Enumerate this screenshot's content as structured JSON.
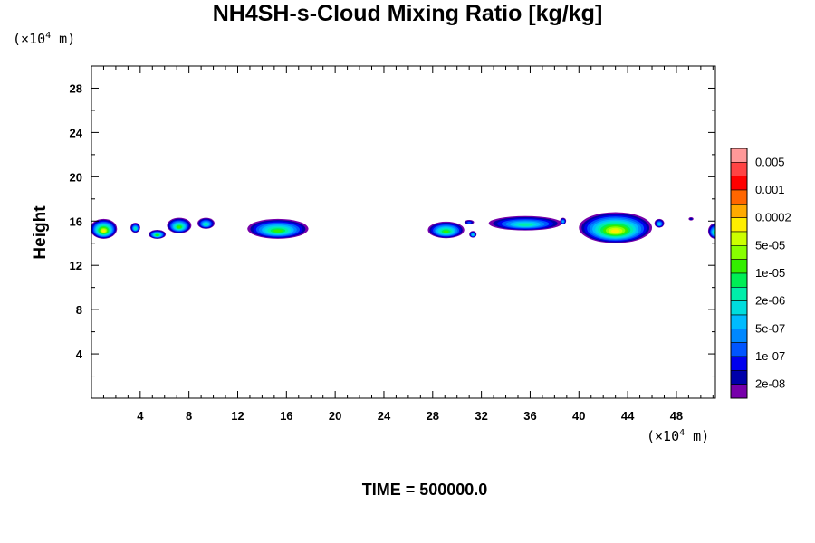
{
  "title": "NH4SH-s-Cloud Mixing Ratio [kg/kg]",
  "y_unit": {
    "prefix": "(×10",
    "exp": "4",
    "suffix": " m)"
  },
  "x_unit": {
    "prefix": "(×10",
    "exp": "4",
    "suffix": " m)"
  },
  "time_label": "TIME = 500000.0",
  "chart_data": {
    "type": "heatmap",
    "title": "NH4SH-s-Cloud Mixing Ratio [kg/kg]",
    "ylabel": "Height",
    "xlabel": "",
    "xlim": [
      0,
      51.2
    ],
    "ylim": [
      0,
      30
    ],
    "x_ticks": [
      4,
      8,
      12,
      16,
      20,
      24,
      28,
      32,
      36,
      40,
      44,
      48
    ],
    "y_ticks": [
      4,
      8,
      12,
      16,
      20,
      24,
      28
    ],
    "colorbar": {
      "labels": [
        "0.005",
        "0.001",
        "0.0002",
        "5e-05",
        "1e-05",
        "2e-06",
        "5e-07",
        "1e-07",
        "2e-08"
      ],
      "colors": [
        "#ff9999",
        "#ff4444",
        "#ff0000",
        "#ff6600",
        "#ffaa00",
        "#ffee00",
        "#ccff00",
        "#88ff00",
        "#33ee00",
        "#00ee55",
        "#00eeaa",
        "#00dddd",
        "#00bbff",
        "#0088ff",
        "#0055ff",
        "#0000ee",
        "#0000aa",
        "#7700aa"
      ]
    },
    "clouds": [
      {
        "x": 1.0,
        "y": 15.3,
        "w": 2.2,
        "h": 1.8,
        "level": 5
      },
      {
        "x": 3.6,
        "y": 15.4,
        "w": 0.8,
        "h": 0.9,
        "level": 10
      },
      {
        "x": 5.4,
        "y": 14.8,
        "w": 1.4,
        "h": 0.8,
        "level": 8
      },
      {
        "x": 7.2,
        "y": 15.6,
        "w": 2.0,
        "h": 1.4,
        "level": 8
      },
      {
        "x": 9.4,
        "y": 15.8,
        "w": 1.4,
        "h": 1.0,
        "level": 10
      },
      {
        "x": 15.3,
        "y": 15.3,
        "w": 5.0,
        "h": 1.8,
        "level": 8
      },
      {
        "x": 29.1,
        "y": 15.2,
        "w": 3.0,
        "h": 1.5,
        "level": 8
      },
      {
        "x": 31.0,
        "y": 15.9,
        "w": 0.8,
        "h": 0.4,
        "level": 14
      },
      {
        "x": 31.3,
        "y": 14.8,
        "w": 0.6,
        "h": 0.6,
        "level": 11
      },
      {
        "x": 35.6,
        "y": 15.8,
        "w": 6.0,
        "h": 1.3,
        "level": 10
      },
      {
        "x": 38.7,
        "y": 16.0,
        "w": 0.5,
        "h": 0.6,
        "level": 12
      },
      {
        "x": 43.0,
        "y": 15.4,
        "w": 6.0,
        "h": 2.8,
        "level": 5
      },
      {
        "x": 46.6,
        "y": 15.8,
        "w": 0.8,
        "h": 0.8,
        "level": 11
      },
      {
        "x": 49.2,
        "y": 16.2,
        "w": 0.4,
        "h": 0.3,
        "level": 16
      },
      {
        "x": 51.2,
        "y": 15.1,
        "w": 1.2,
        "h": 1.4,
        "level": 9
      }
    ]
  }
}
